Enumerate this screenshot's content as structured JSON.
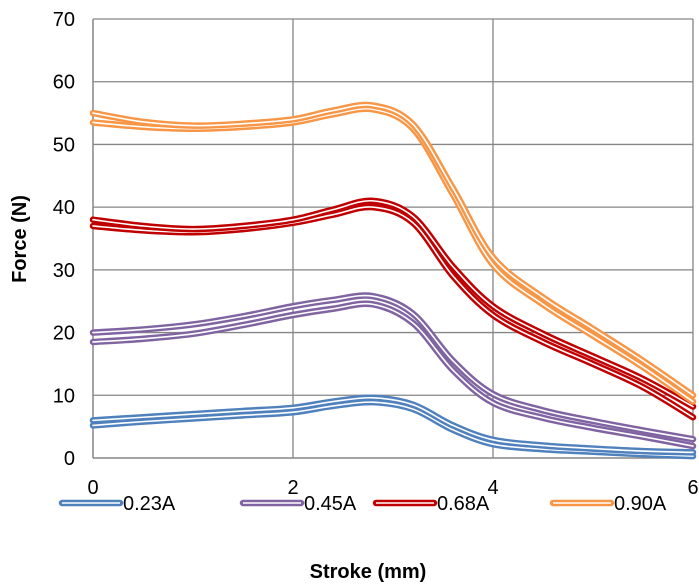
{
  "chart_data": {
    "type": "line",
    "title": "",
    "xlabel": "Stroke (mm)",
    "ylabel": "Force (N)",
    "xlim": [
      0,
      6
    ],
    "ylim": [
      0,
      70
    ],
    "xticks": [
      0,
      2,
      4,
      6
    ],
    "yticks": [
      0,
      10,
      20,
      30,
      40,
      50,
      60,
      70
    ],
    "grid": true,
    "legend_position": "bottom",
    "series": [
      {
        "name": "0.23A",
        "color": "#4F81BD",
        "lines": [
          {
            "x": [
              0,
              0.5,
              1,
              1.5,
              2,
              2.4,
              2.8,
              3.2,
              3.6,
              4,
              4.5,
              5,
              5.5,
              6
            ],
            "y": [
              5.2,
              5.8,
              6.3,
              6.8,
              7.3,
              8.3,
              8.9,
              7.8,
              4.5,
              2.2,
              1.4,
              1.0,
              0.6,
              0.3
            ]
          },
          {
            "x": [
              0,
              0.5,
              1,
              1.5,
              2,
              2.4,
              2.8,
              3.2,
              3.6,
              4,
              4.5,
              5,
              5.5,
              6
            ],
            "y": [
              6.0,
              6.5,
              7.0,
              7.5,
              8.0,
              9.0,
              9.6,
              8.5,
              5.2,
              2.9,
              2.0,
              1.5,
              1.1,
              0.9
            ]
          }
        ]
      },
      {
        "name": "0.45A",
        "color": "#8064A2",
        "lines": [
          {
            "x": [
              0,
              0.5,
              1,
              1.5,
              2,
              2.4,
              2.8,
              3.2,
              3.6,
              4,
              4.5,
              5,
              5.5,
              6
            ],
            "y": [
              18.5,
              19.0,
              19.8,
              21.2,
              22.8,
              23.8,
              24.5,
              21.5,
              14.0,
              8.8,
              6.4,
              4.8,
              3.4,
              1.9
            ]
          },
          {
            "x": [
              0,
              0.5,
              1,
              1.5,
              2,
              2.4,
              2.8,
              3.2,
              3.6,
              4,
              4.5,
              5,
              5.5,
              6
            ],
            "y": [
              20.0,
              20.5,
              21.3,
              22.6,
              24.2,
              25.2,
              25.8,
              23.0,
              15.5,
              10.2,
              7.6,
              5.9,
              4.4,
              3.0
            ]
          }
        ]
      },
      {
        "name": "0.68A",
        "color": "#C00000",
        "lines": [
          {
            "x": [
              0,
              0.5,
              1,
              1.5,
              2,
              2.4,
              2.8,
              3.2,
              3.6,
              4,
              4.5,
              5,
              5.5,
              6
            ],
            "y": [
              37.0,
              36.3,
              36.0,
              36.5,
              37.5,
              38.8,
              40.0,
              37.5,
              29.0,
              22.8,
              18.5,
              15.0,
              11.3,
              6.5
            ]
          },
          {
            "x": [
              0,
              0.5,
              1,
              1.5,
              2,
              2.4,
              2.8,
              3.2,
              3.6,
              4,
              4.5,
              5,
              5.5,
              6
            ],
            "y": [
              38.0,
              37.0,
              36.5,
              37.0,
              38.0,
              39.6,
              41.0,
              38.5,
              30.5,
              24.2,
              19.8,
              16.2,
              12.6,
              8.2
            ]
          }
        ]
      },
      {
        "name": "0.90A",
        "color": "#F79646",
        "lines": [
          {
            "x": [
              0,
              0.5,
              1,
              1.5,
              2,
              2.4,
              2.8,
              3.2,
              3.6,
              4,
              4.5,
              5,
              5.5,
              6
            ],
            "y": [
              53.5,
              52.8,
              52.5,
              52.8,
              53.5,
              54.8,
              55.6,
              52.5,
              42.0,
              30.8,
              24.5,
              19.5,
              14.5,
              9.0
            ]
          },
          {
            "x": [
              0,
              0.5,
              1,
              1.5,
              2,
              2.4,
              2.8,
              3.2,
              3.6,
              4,
              4.5,
              5,
              5.5,
              6
            ],
            "y": [
              55.0,
              53.6,
              53.0,
              53.3,
              54.0,
              55.4,
              56.2,
              53.2,
              43.0,
              32.0,
              25.6,
              20.6,
              15.5,
              10.0
            ]
          }
        ]
      }
    ]
  }
}
